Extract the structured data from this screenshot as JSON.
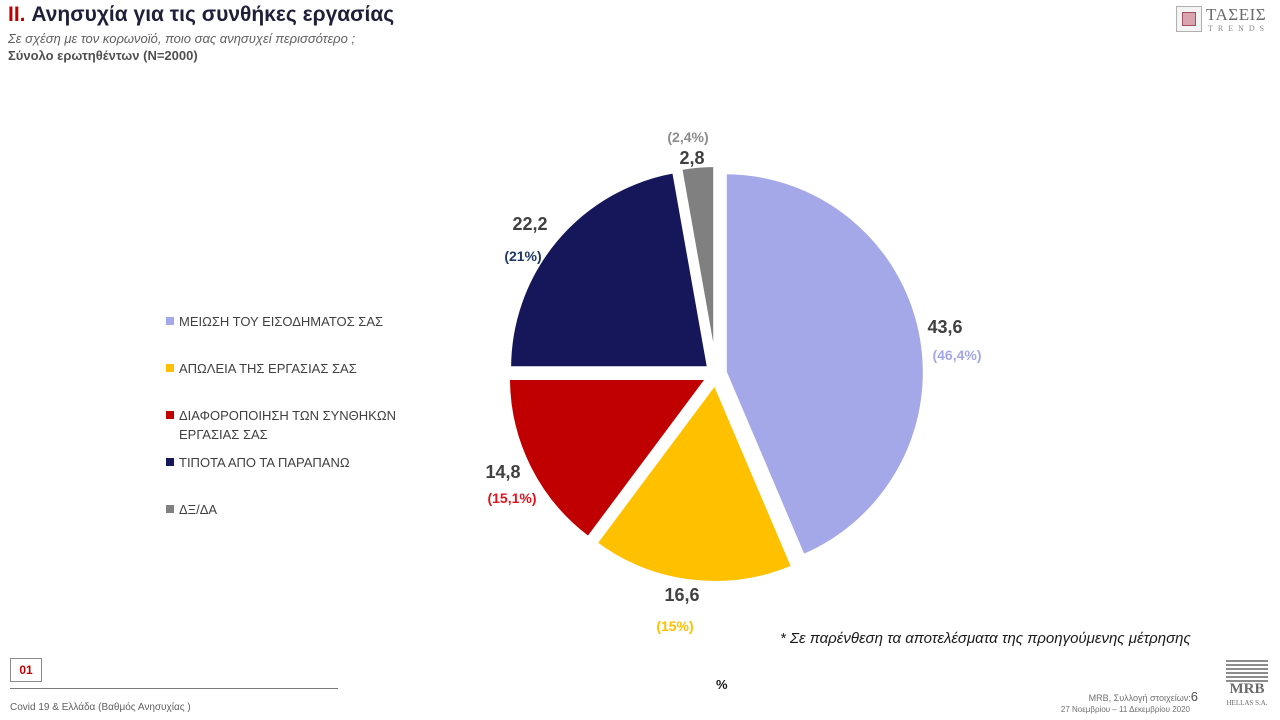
{
  "header": {
    "title_number": "II.",
    "title_text": "Ανησυχία για τις συνθήκες εργασίας",
    "subtitle": "Σε σχέση με τον  κορωνοϊό, ποιο σας ανησυχεί περισσότερο ;",
    "base": "Σύνολο ερωτηθέντων (N=2000)"
  },
  "logo_top": {
    "brand": "ΤΑΣΕΙΣ",
    "sub": "TRENDS"
  },
  "chart_data": {
    "type": "pie",
    "unit": "%",
    "categories": [
      "ΜΕΙΩΣΗ ΤΟΥ ΕΙΣΟΔΗΜΑΤΟΣ ΣΑΣ",
      "ΑΠΩΛΕΙΑ ΤΗΣ ΕΡΓΑΣΙΑΣ ΣΑΣ",
      "ΔΙΑΦΟΡΟΠΟΙΗΣΗ ΤΩΝ ΣΥΝΘΗΚΩΝ ΕΡΓΑΣΙΑΣ ΣΑΣ",
      "ΤΙΠΟΤΑ ΑΠΟ ΤΑ ΠΑΡΑΠΑΝΩ",
      "ΔΞ/ΔΑ"
    ],
    "values": [
      43.6,
      16.6,
      14.8,
      22.2,
      2.8
    ],
    "value_labels": [
      "43,6",
      "16,6",
      "14,8",
      "22,2",
      "2,8"
    ],
    "previous_labels": [
      "(46,4%)",
      "(15%)",
      "(15,1%)",
      "(21%)",
      "(2,4%)"
    ],
    "colors": [
      "#a5a8e8",
      "#ffc000",
      "#c00000",
      "#15175a",
      "#808080"
    ],
    "previous_label_colors": [
      "#a5a8e8",
      "#ffc000",
      "#e0141e",
      "#1f3864",
      "#8c8c8c"
    ],
    "legend_position": "left"
  },
  "note": "* Σε παρένθεση τα αποτελέσματα της προηγούμενης μέτρησης",
  "unit_label": "%",
  "footer": {
    "page_code": "01",
    "left_text": "Covid 19 & Ελλάδα (Βαθμός Ανησυχίας )",
    "source": "MRB, Συλλογή στοιχείων:",
    "page_number": "6",
    "dates": "27 Νοεμβρίου  –  11 Δεκεμβρίου 2020"
  },
  "logo_bottom": {
    "brand": "MRB",
    "sub": "HELLAS S.A."
  }
}
